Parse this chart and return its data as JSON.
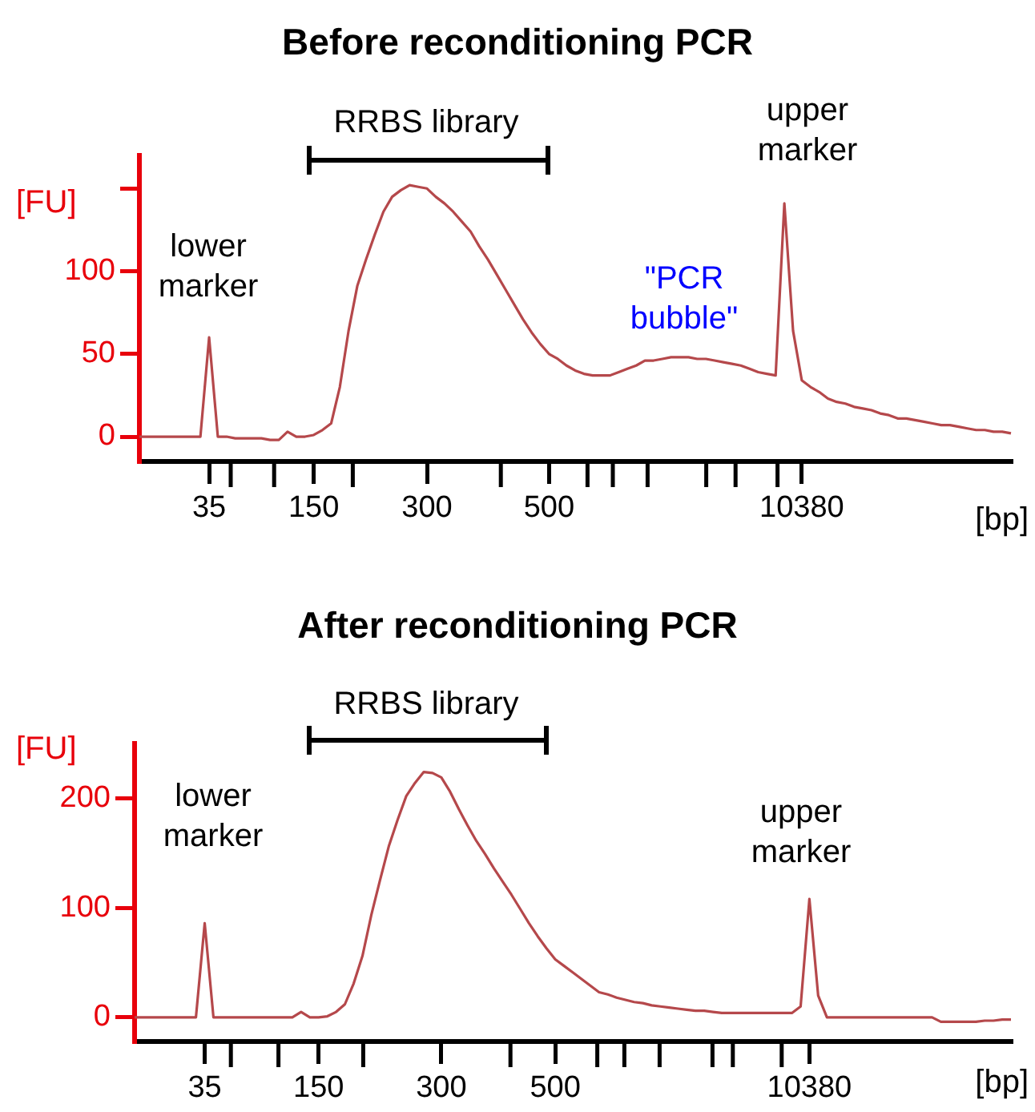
{
  "chart_data": [
    {
      "type": "line",
      "title": "Before reconditioning PCR",
      "xlabel": "[bp]",
      "ylabel": "[FU]",
      "color": "#b5484b",
      "marker": "none",
      "categories": [
        null,
        null,
        null,
        null,
        null,
        null,
        null,
        null,
        "35",
        null,
        null,
        null,
        null,
        null,
        null,
        null,
        null,
        null,
        null,
        null,
        "150",
        null,
        null,
        null,
        null,
        null,
        null,
        null,
        null,
        null,
        null,
        null,
        null,
        "300",
        null,
        null,
        null,
        null,
        null,
        null,
        null,
        null,
        null,
        null,
        null,
        null,
        null,
        "500",
        null,
        null,
        null,
        null,
        null,
        null,
        null,
        null,
        null,
        null,
        null,
        null,
        null,
        null,
        null,
        null,
        null,
        null,
        null,
        null,
        null,
        null,
        null,
        null,
        null,
        null,
        null,
        null,
        "10380",
        null,
        null,
        null,
        null,
        null,
        null,
        null,
        null,
        null,
        null,
        null,
        null,
        null,
        null,
        null,
        null,
        null,
        null,
        null,
        null,
        null,
        null,
        null,
        null
      ],
      "values": [
        0,
        0,
        0,
        0,
        0,
        0,
        0,
        0,
        60,
        0,
        0,
        -1,
        -1,
        -1,
        -1,
        -2,
        -2,
        3,
        0,
        0,
        1,
        4,
        8,
        30,
        64,
        91,
        107,
        122,
        136,
        145,
        149,
        152,
        151,
        150,
        145,
        141,
        136,
        130,
        124,
        115,
        107,
        98,
        89,
        80,
        71,
        63,
        56,
        50,
        47,
        43,
        40,
        38,
        37,
        37,
        37,
        39,
        41,
        43,
        46,
        46,
        47,
        48,
        48,
        48,
        47,
        47,
        46,
        45,
        44,
        43,
        41,
        39,
        38,
        37,
        141,
        64,
        34,
        30,
        27,
        23,
        21,
        20,
        18,
        17,
        16,
        14,
        13,
        11,
        11,
        10,
        9,
        8,
        7,
        7,
        6,
        5,
        4,
        4,
        3,
        3,
        2
      ],
      "ylim": [
        -15,
        170
      ],
      "yticks": [
        0,
        50,
        100,
        {
          "value": 150,
          "label": null
        }
      ],
      "annotations": [
        "RRBS library",
        "lower\nmarker",
        "\"PCR\nbubble\"",
        "upper\nmarker"
      ]
    },
    {
      "type": "line",
      "title": "After reconditioning PCR",
      "xlabel": "[bp]",
      "ylabel": "[FU]",
      "color": "#b5484b",
      "marker": "none",
      "categories": [
        null,
        null,
        null,
        null,
        null,
        null,
        null,
        null,
        "35",
        null,
        null,
        null,
        null,
        null,
        null,
        null,
        null,
        null,
        null,
        null,
        null,
        "150",
        null,
        null,
        null,
        null,
        null,
        null,
        null,
        null,
        null,
        null,
        null,
        null,
        null,
        "300",
        null,
        null,
        null,
        null,
        null,
        null,
        null,
        null,
        null,
        null,
        null,
        null,
        "500",
        null,
        null,
        null,
        null,
        null,
        null,
        null,
        null,
        null,
        null,
        null,
        null,
        null,
        null,
        null,
        null,
        null,
        null,
        null,
        null,
        null,
        null,
        null,
        null,
        null,
        null,
        null,
        null,
        "10380",
        null,
        null,
        null,
        null,
        null,
        null,
        null,
        null,
        null,
        null,
        null,
        null,
        null,
        null,
        null,
        null,
        null,
        null,
        null,
        null,
        null,
        null,
        null
      ],
      "values": [
        0,
        0,
        0,
        0,
        0,
        0,
        0,
        0,
        86,
        0,
        0,
        0,
        0,
        0,
        0,
        0,
        0,
        0,
        0,
        5,
        0,
        0,
        1,
        5,
        12,
        31,
        56,
        93,
        125,
        156,
        180,
        202,
        214,
        224,
        223,
        219,
        206,
        190,
        175,
        161,
        149,
        136,
        124,
        112,
        99,
        86,
        74,
        63,
        53,
        47,
        41,
        35,
        29,
        23,
        21,
        18,
        16,
        14,
        13,
        11,
        10,
        9,
        8,
        7,
        6,
        6,
        5,
        4,
        4,
        4,
        4,
        4,
        4,
        4,
        4,
        4,
        10,
        108,
        20,
        0,
        0,
        0,
        0,
        0,
        0,
        0,
        0,
        0,
        0,
        0,
        0,
        0,
        -4,
        -4,
        -4,
        -4,
        -4,
        -3,
        -3,
        -2,
        -2
      ],
      "ylim": [
        -22,
        250
      ],
      "yticks": [
        0,
        100,
        200
      ],
      "annotations": [
        "RRBS library",
        "lower\nmarker",
        "upper\nmarker"
      ]
    }
  ]
}
